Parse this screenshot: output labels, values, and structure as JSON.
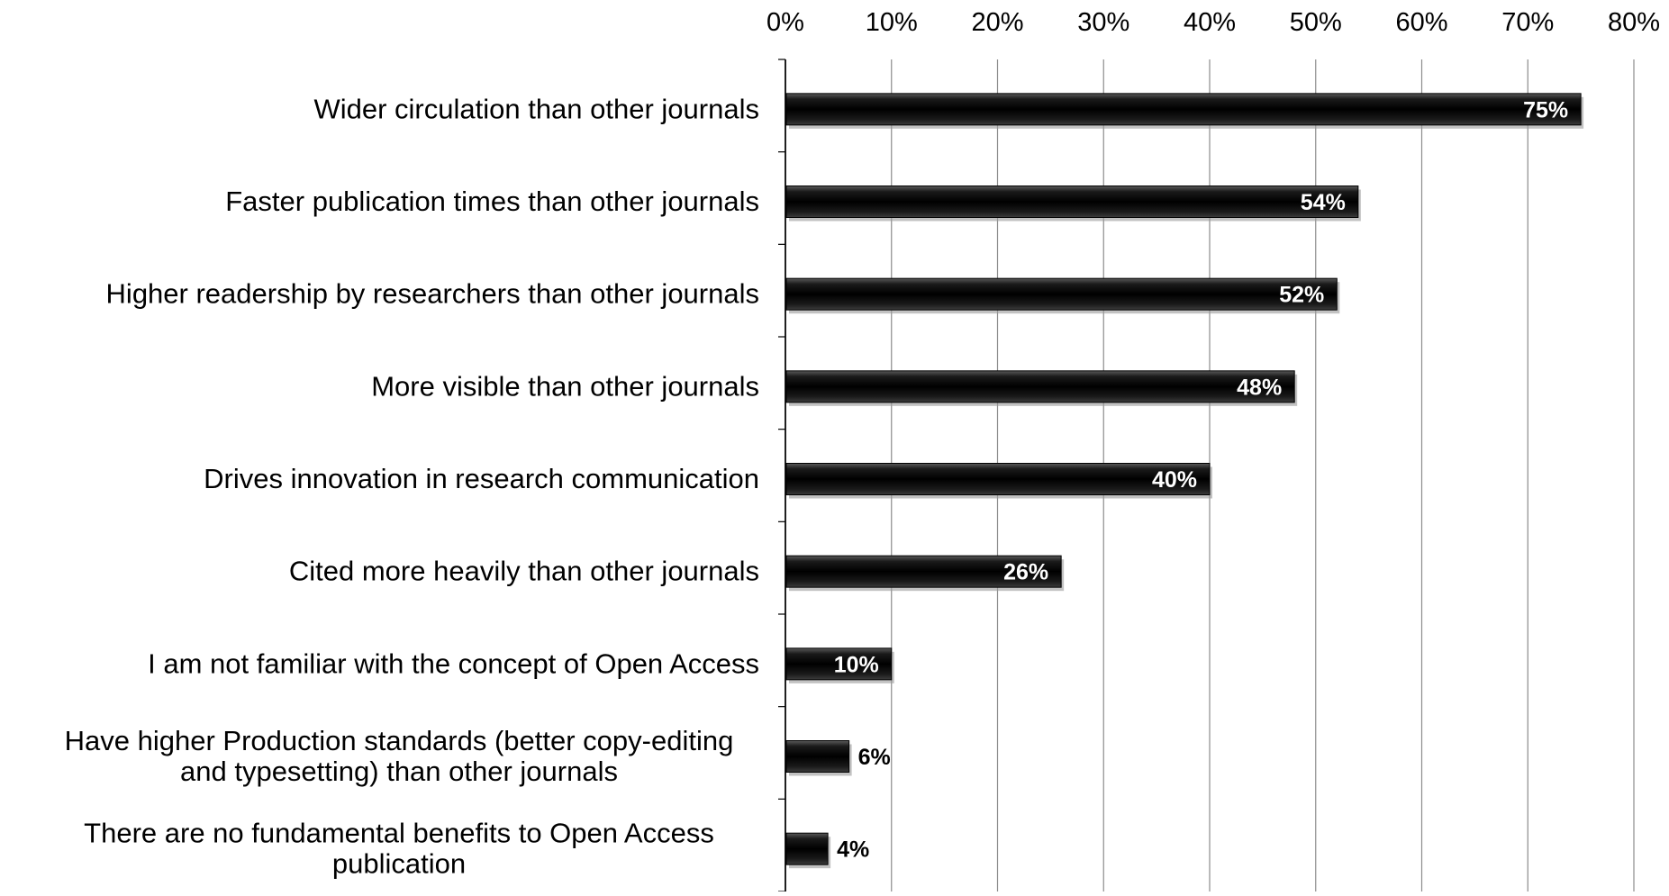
{
  "chart_data": {
    "type": "bar",
    "orientation": "horizontal",
    "categories": [
      "Wider circulation than other journals",
      "Faster publication times than other journals",
      "Higher readership by researchers than other journals",
      "More visible than other journals",
      "Drives innovation in research communication",
      "Cited more heavily than other journals",
      "I am not familiar with the concept of Open Access",
      "Have higher Production standards (better copy-editing and typesetting) than other journals",
      "There are no fundamental benefits to Open Access publication"
    ],
    "category_lines": [
      [
        "Wider circulation than other journals"
      ],
      [
        "Faster publication times than other journals"
      ],
      [
        "Higher readership by researchers than other journals"
      ],
      [
        "More visible than other journals"
      ],
      [
        "Drives innovation in research communication"
      ],
      [
        "Cited more heavily than other journals"
      ],
      [
        "I am not familiar with the concept of Open Access"
      ],
      [
        "Have higher Production standards (better copy-editing",
        "and typesetting) than other journals"
      ],
      [
        "There are no fundamental benefits to Open Access",
        "publication"
      ]
    ],
    "values": [
      75,
      54,
      52,
      48,
      40,
      26,
      10,
      6,
      4
    ],
    "data_labels": [
      "75%",
      "54%",
      "52%",
      "48%",
      "40%",
      "26%",
      "10%",
      "6%",
      "4%"
    ],
    "x_ticks": [
      "0%",
      "10%",
      "20%",
      "30%",
      "40%",
      "50%",
      "60%",
      "70%",
      "80%"
    ],
    "xlim": [
      0,
      80
    ],
    "x_axis_position": "top",
    "grid": true,
    "bar_color": "#111111",
    "label_color_inside": "#ffffff",
    "label_color_outside": "#000000",
    "title": "",
    "xlabel": "",
    "ylabel": ""
  }
}
